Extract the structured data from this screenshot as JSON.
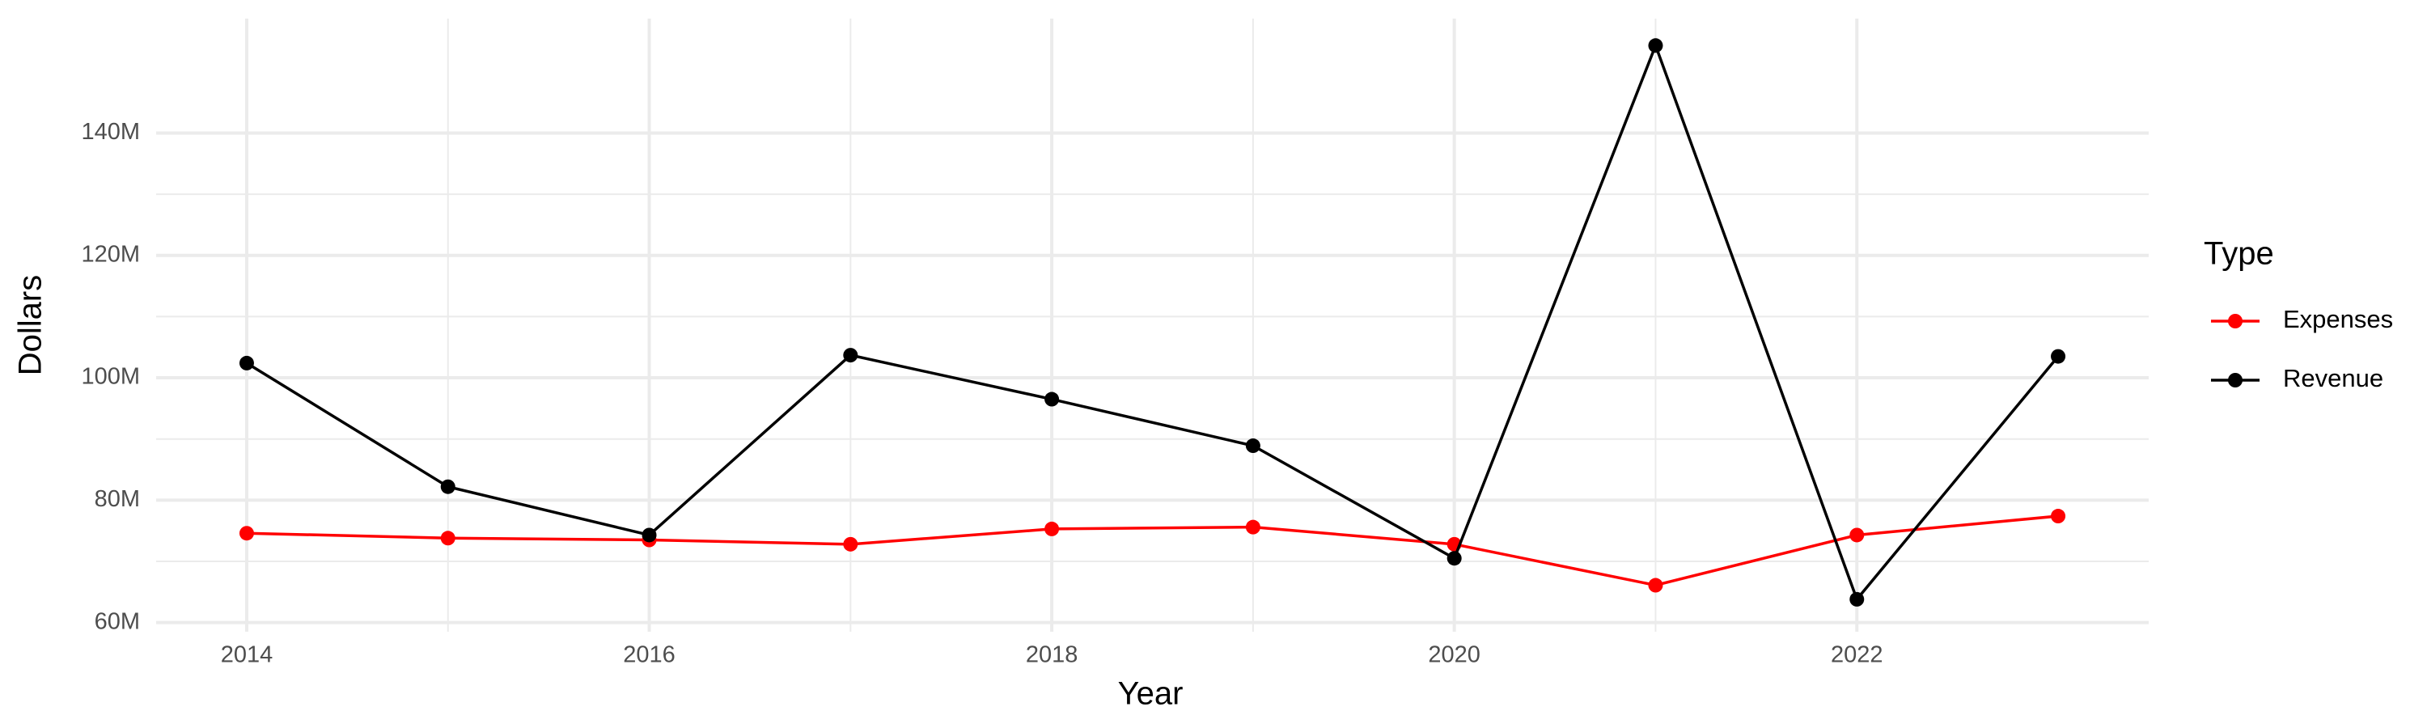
{
  "chart_data": {
    "type": "line",
    "x_label": "Year",
    "y_label": "Dollars",
    "legend_title": "Type",
    "x": [
      2014,
      2015,
      2016,
      2017,
      2018,
      2019,
      2020,
      2021,
      2022,
      2023
    ],
    "series": [
      {
        "name": "Expenses",
        "color": "#ff0000",
        "values": [
          74600000,
          73800000,
          73500000,
          72800000,
          75300000,
          75600000,
          72800000,
          66100000,
          74300000,
          77400000
        ]
      },
      {
        "name": "Revenue",
        "color": "#000000",
        "values": [
          102400000,
          82200000,
          74300000,
          103700000,
          96500000,
          88900000,
          70500000,
          154300000,
          63800000,
          103500000
        ]
      }
    ],
    "xlim": [
      2013.55,
      2023.45
    ],
    "xticks": [
      2014,
      2016,
      2018,
      2020,
      2022
    ],
    "ylim": [
      58500000,
      158700000
    ],
    "yticks": [
      {
        "value": 60000000,
        "label": "60M"
      },
      {
        "value": 80000000,
        "label": "80M"
      },
      {
        "value": 100000000,
        "label": "100M"
      },
      {
        "value": 120000000,
        "label": "120M"
      },
      {
        "value": 140000000,
        "label": "140M"
      }
    ],
    "grid": true,
    "minor_grid": true,
    "legend": "right"
  }
}
